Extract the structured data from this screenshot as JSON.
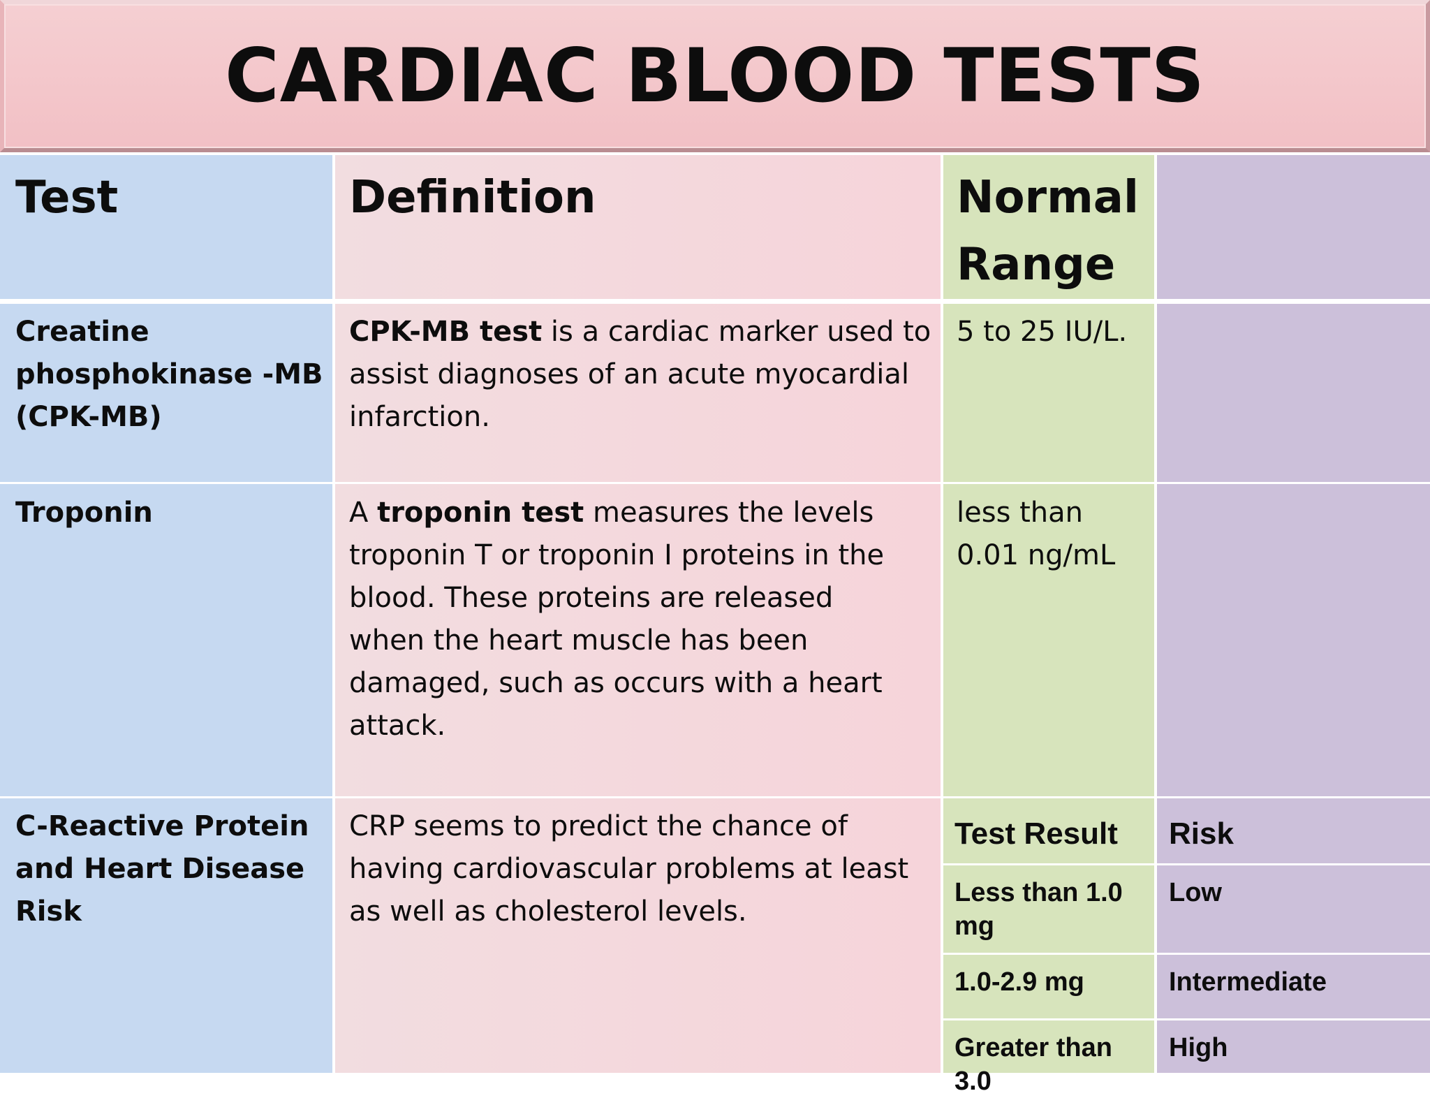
{
  "title": "CARDIAC BLOOD TESTS",
  "table": {
    "headers": {
      "test": "Test",
      "definition": "Definition",
      "normal_range_line1": "Normal",
      "normal_range_line2": "Range"
    },
    "rows": [
      {
        "test_lines": [
          "Creatine",
          "phosphokinase -MB",
          "(CPK-MB)"
        ],
        "definition": {
          "line1_bold": "CPK-MB test",
          "line1_rest": " is a cardiac marker used to",
          "line2": "assist diagnoses of an acute myocardial",
          "line3": "infarction."
        },
        "normal_range": "5 to 25 IU/L."
      },
      {
        "test_lines": [
          "Troponin"
        ],
        "definition": {
          "line1_pre": "A ",
          "line1_bold": "troponin test",
          "line1_rest": " measures the levels",
          "line2": "troponin T or troponin I proteins in the",
          "line3": "blood. These proteins are released",
          "line4": "when the heart muscle has been",
          "line5": "damaged, such as occurs with a heart",
          "line6": "attack."
        },
        "normal_range_lines": [
          "less than",
          "0.01 ng/mL"
        ]
      },
      {
        "test_lines": [
          "C-Reactive Protein",
          "and Heart Disease",
          "Risk"
        ],
        "definition_lines": [
          "CRP seems to predict the chance of",
          "having cardiovascular problems at least",
          "as well as cholesterol levels."
        ],
        "risk_table": {
          "headers": {
            "result": "Test Result",
            "risk": "Risk"
          },
          "rows": [
            {
              "result_lines": [
                "Less than 1.0",
                "mg"
              ],
              "risk": "Low"
            },
            {
              "result_lines": [
                "1.0-2.9 mg"
              ],
              "risk": "Intermediate"
            },
            {
              "result_lines": [
                "Greater than",
                "3.0"
              ],
              "risk": "High"
            }
          ]
        }
      }
    ]
  },
  "colors": {
    "banner": "#f2c0c5",
    "test_column": "#c6d9f1",
    "definition_column": "#f4d8dc",
    "normal_range_column": "#d7e4bc",
    "risk_column": "#ccc0da"
  }
}
